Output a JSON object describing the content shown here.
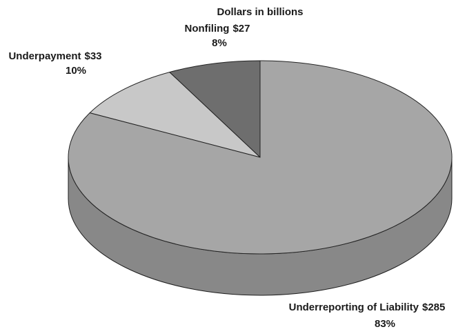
{
  "chart_data": {
    "type": "pie",
    "title": "Dollars in billions",
    "categories": [
      "Underreporting of Liability",
      "Underpayment",
      "Nonfiling"
    ],
    "values": [
      285,
      33,
      27
    ],
    "value_labels": [
      "$285",
      "$33",
      "$27"
    ],
    "percent_labels": [
      "83%",
      "10%",
      "8%"
    ],
    "colors": [
      "#a6a6a6",
      "#c8c8c8",
      "#6e6e6e"
    ]
  }
}
